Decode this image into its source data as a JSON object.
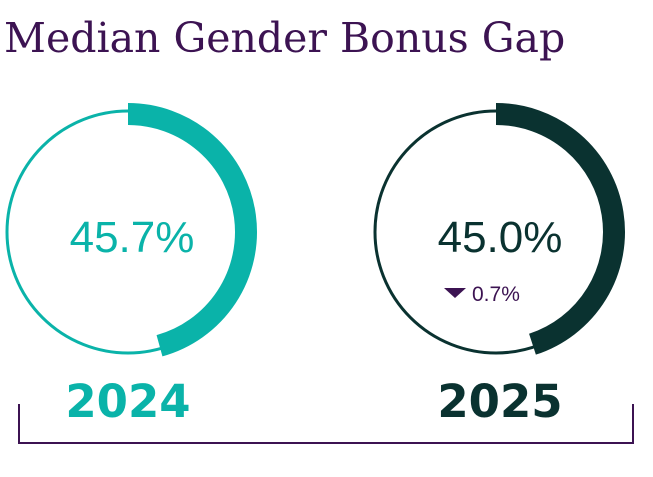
{
  "title": "Median Gender Bonus Gap",
  "colors": {
    "title": "#3c1352",
    "y2024": "#0ab3a9",
    "y2025": "#0a3230",
    "change": "#3c1352"
  },
  "chart_data": {
    "type": "donut",
    "title": "Median Gender Bonus Gap",
    "unit": "%",
    "items": [
      {
        "year": "2024",
        "value": 45.7,
        "label": "45.7%",
        "change_label": ""
      },
      {
        "year": "2025",
        "value": 45.0,
        "label": "45.0%",
        "change_label": "0.7%",
        "change_direction": "down"
      }
    ]
  }
}
